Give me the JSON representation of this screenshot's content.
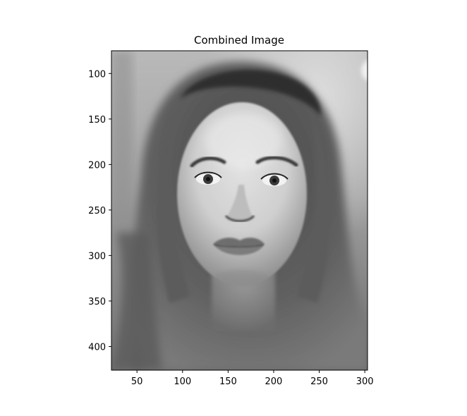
{
  "figure": {
    "title": "Combined Image",
    "image_description_icon": "grayscale-portrait-photo",
    "x_axis": {
      "ticks": [
        50,
        100,
        150,
        200,
        250,
        300
      ],
      "range": [
        22,
        303
      ]
    },
    "y_axis": {
      "ticks": [
        100,
        150,
        200,
        250,
        300,
        350,
        400
      ],
      "range": [
        75,
        426
      ]
    }
  }
}
